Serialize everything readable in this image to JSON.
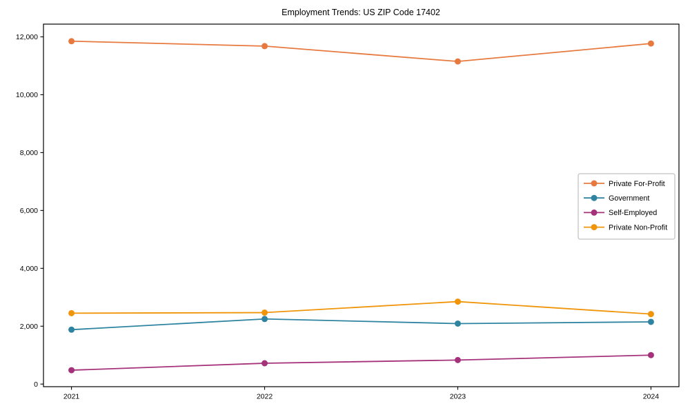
{
  "chart_data": {
    "type": "line",
    "title": "Employment Trends: US ZIP Code 17402",
    "xlabel": "",
    "ylabel": "",
    "x": [
      2021,
      2022,
      2023,
      2024
    ],
    "x_tick_labels": [
      "2021",
      "2022",
      "2023",
      "2024"
    ],
    "y_ticks": [
      0,
      2000,
      4000,
      6000,
      8000,
      10000,
      12000
    ],
    "y_tick_labels": [
      "0",
      "2,000",
      "4,000",
      "6,000",
      "8,000",
      "10,000",
      "12,000"
    ],
    "xlim": [
      2020.855,
      2024.145
    ],
    "ylim": [
      -90,
      12440
    ],
    "grid": false,
    "series": [
      {
        "name": "Private For-Profit",
        "color": "#e8793e",
        "values": [
          11850,
          11680,
          11150,
          11770
        ]
      },
      {
        "name": "Government",
        "color": "#2e84a0",
        "values": [
          1880,
          2250,
          2090,
          2150
        ]
      },
      {
        "name": "Self-Employed",
        "color": "#a5317a",
        "values": [
          480,
          720,
          830,
          1000
        ]
      },
      {
        "name": "Private Non-Profit",
        "color": "#f0940a",
        "values": [
          2450,
          2470,
          2850,
          2420
        ]
      }
    ],
    "legend": {
      "position": "center right",
      "border_color": "#b3b3b3",
      "background": "#ffffff"
    },
    "colors": {
      "spine": "#000000",
      "tick_label": "#000000",
      "background": "#ffffff"
    }
  }
}
